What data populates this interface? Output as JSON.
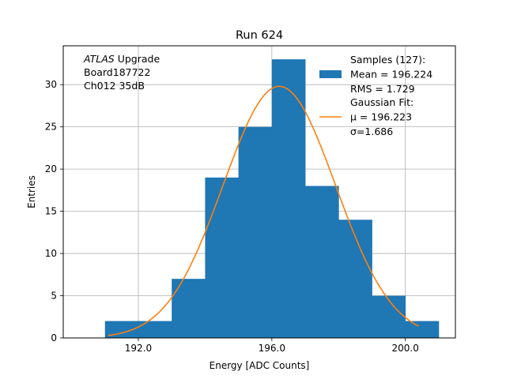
{
  "chart_data": {
    "type": "bar",
    "title": "Run 624",
    "xlabel": "Energy [ADC Counts]",
    "ylabel": "Entries",
    "xlim": [
      189.75,
      201.5
    ],
    "ylim": [
      0,
      34.6
    ],
    "grid": true,
    "x_ticks": [
      192.0,
      196.0,
      200.0
    ],
    "x_tick_labels": [
      "192.0",
      "196.0",
      "200.0"
    ],
    "y_ticks": [
      0,
      5,
      10,
      15,
      20,
      25,
      30
    ],
    "y_tick_labels": [
      "0",
      "5",
      "10",
      "15",
      "20",
      "25",
      "30"
    ],
    "bin_edges": [
      191,
      192,
      193,
      194,
      195,
      196,
      197,
      198,
      199,
      200,
      201
    ],
    "values": [
      2,
      2,
      7,
      19,
      25,
      33,
      18,
      14,
      5,
      2
    ],
    "histogram_color": "#1f77b4",
    "fit": {
      "type": "gaussian",
      "mu": 196.223,
      "sigma": 1.686,
      "amplitude": 29.8,
      "x_range": [
        191.1,
        200.4
      ],
      "color": "#ff7f0e"
    },
    "annotation": {
      "lines": [
        {
          "italic": "ATLAS",
          "text": " Upgrade"
        },
        {
          "italic": "",
          "text": " Board187722"
        },
        {
          "italic": "",
          "text": " Ch012 35dB"
        }
      ]
    },
    "legend": {
      "position": "top-right",
      "entries": [
        {
          "kind": "patch",
          "lines": [
            "Samples (127):",
            " Mean = 196.224",
            " RMS = 1.729"
          ]
        },
        {
          "kind": "line",
          "lines": [
            "Gaussian Fit:",
            " μ = 196.223",
            " σ=1.686"
          ]
        }
      ]
    }
  }
}
